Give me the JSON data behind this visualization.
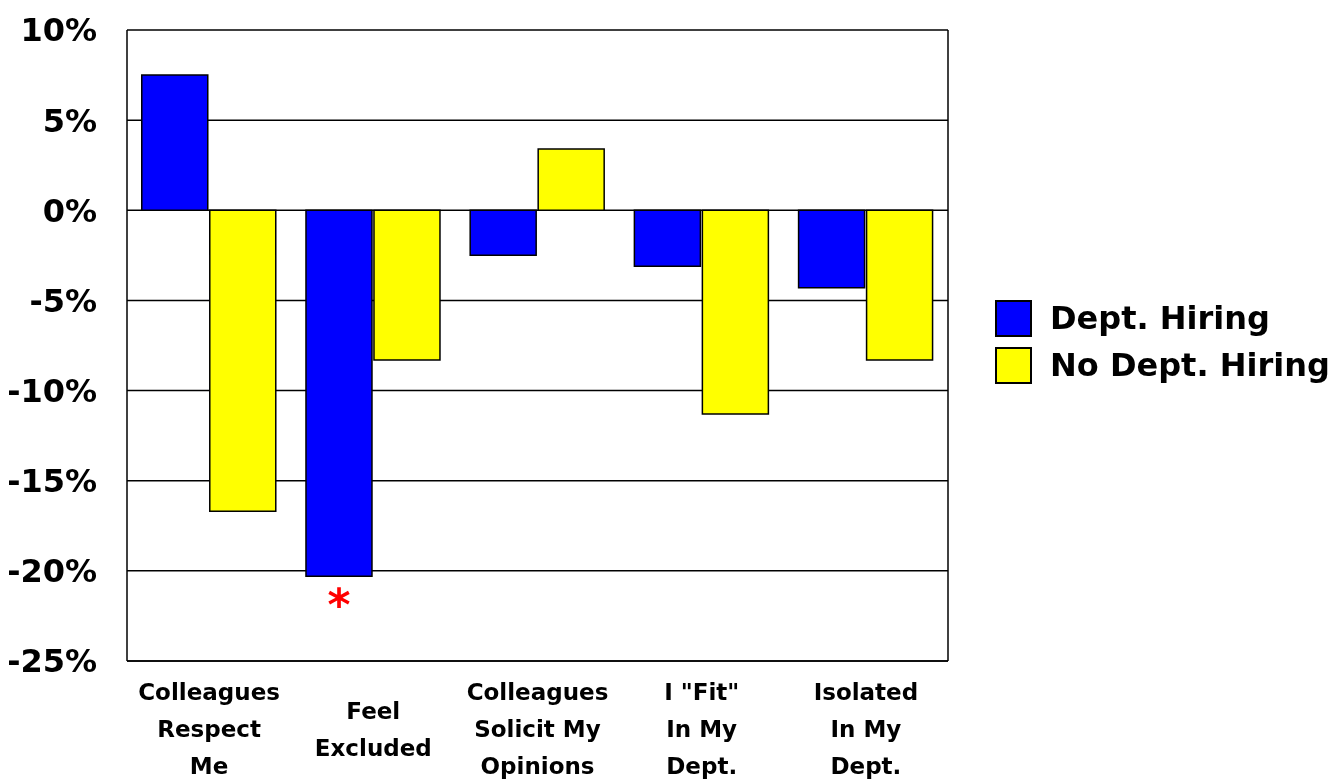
{
  "chart_data": {
    "type": "bar",
    "categories": [
      "Colleagues\nRespect\nMe",
      "Feel\nExcluded",
      "Colleagues\nSolicit My\nOpinions",
      "I \"Fit\"\nIn My\nDept.",
      "Isolated\nIn My\nDept."
    ],
    "series": [
      {
        "name": "Dept. Hiring",
        "color": "#0000ff",
        "values": [
          7.5,
          -20.3,
          -2.5,
          -3.1,
          -4.3
        ]
      },
      {
        "name": "No Dept. Hiring",
        "color": "#ffff00",
        "values": [
          -16.7,
          -8.3,
          3.4,
          -11.3,
          -8.3
        ]
      }
    ],
    "ylim": [
      -25,
      10
    ],
    "yticks": [
      {
        "value": 10,
        "label": "10%"
      },
      {
        "value": 5,
        "label": "5%"
      },
      {
        "value": 0,
        "label": "0%"
      },
      {
        "value": -5,
        "label": "-5%"
      },
      {
        "value": -10,
        "label": "-10%"
      },
      {
        "value": -15,
        "label": "-15%"
      },
      {
        "value": -20,
        "label": "-20%"
      },
      {
        "value": -25,
        "label": "-25%"
      }
    ],
    "grid": "y",
    "legend": "right",
    "annotations": [
      {
        "text": "*",
        "x": "Feel\nExcluded",
        "y": -20.3
      }
    ]
  }
}
